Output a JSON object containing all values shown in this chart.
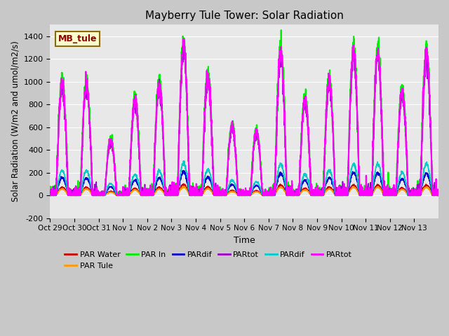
{
  "title": "Mayberry Tule Tower: Solar Radiation",
  "xlabel": "Time",
  "ylabel": "Solar Radiation (W/m2 and umol/m2/s)",
  "ylim": [
    -200,
    1500
  ],
  "num_days": 16,
  "pts_per_day": 144,
  "background_color": "#e0e0e0",
  "legend_label": "MB_tule",
  "legend_entries": [
    "PAR Water",
    "PAR Tule",
    "PAR In",
    "PARdif",
    "PARtot",
    "PARdif",
    "PARtot"
  ],
  "legend_colors": [
    "#cc0000",
    "#ff9900",
    "#00ee00",
    "#0000cc",
    "#9900cc",
    "#00cccc",
    "#ff00ff"
  ],
  "series_colors": [
    "#cc0000",
    "#ff9900",
    "#00ee00",
    "#0000cc",
    "#9900cc",
    "#00cccc",
    "#ff00ff"
  ],
  "series_scales": [
    0.07,
    0.055,
    1.0,
    0.15,
    0.92,
    0.21,
    0.96
  ],
  "xtick_labels": [
    "Oct 29",
    "Oct 30",
    "Oct 31",
    "Nov 1",
    "Nov 2",
    "Nov 3",
    "Nov 4",
    "Nov 5",
    "Nov 6",
    "Nov 7",
    "Nov 8",
    "Nov 9",
    "Nov 10",
    "Nov 11",
    "Nov 12",
    "Nov 13"
  ],
  "ytick_values": [
    -200,
    0,
    200,
    400,
    600,
    800,
    1000,
    1200,
    1400
  ],
  "day_peaks": [
    1030,
    1020,
    500,
    870,
    1010,
    1360,
    1080,
    630,
    580,
    1310,
    880,
    1040,
    1310,
    1310,
    950,
    1290
  ],
  "plot_order": [
    2,
    6,
    4,
    5,
    3,
    0,
    1
  ]
}
